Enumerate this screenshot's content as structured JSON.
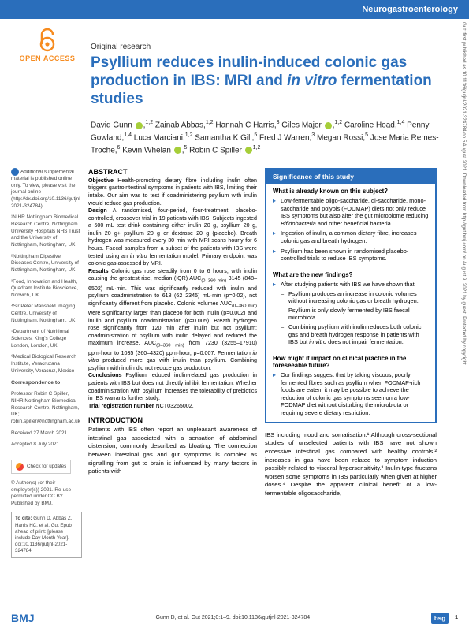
{
  "header": {
    "section": "Neurogastroenterology"
  },
  "open_access": {
    "label": "OPEN ACCESS"
  },
  "article": {
    "type": "Original research",
    "title_html": "Psyllium reduces inulin-induced colonic gas production in IBS: MRI and <em>in vitro</em> fermentation studies"
  },
  "authors_html": "David Gunn <span class='orcid'></span>,<sup>1,2</sup> Zainab Abbas,<sup>1,2</sup> Hannah C Harris,<sup>3</sup> Giles Major <span class='orcid'></span>,<sup>1,2</sup> Caroline Hoad,<sup>1,4</sup> Penny Gowland,<sup>1,4</sup> Luca Marciani,<sup>1,2</sup> Samantha K Gill,<sup>5</sup> Fred J Warren,<sup>3</sup> Megan Rossi,<sup>5</sup> Jose Maria Remes-Troche,<sup>6</sup> Kevin Whelan <span class='orcid'></span>,<sup>5</sup> Robin C Spiller <span class='orcid'></span><sup>1,2</sup>",
  "sidebar": {
    "supplemental": "Additional supplemental material is published online only. To view, please visit the journal online (http://dx.doi.org/10.1136/gutjnl-2021-324784).",
    "affiliations": [
      "¹NIHR Nottingham Biomedical Research Centre, Nottingham University Hospitals NHS Trust and the University of Nottingham, Nottingham, UK",
      "²Nottingham Digestive Diseases Centre, University of Nottingham, Nottingham, UK",
      "³Food, Innovation and Health, Quadram Institute Bioscience, Norwich, UK",
      "⁴Sir Peter Mansfield Imaging Centre, University of Nottingham, Nottingham, UK",
      "⁵Department of Nutritional Sciences, King's College London, London, UK",
      "⁶Medical Biological Research Institute, Veracruzana University, Veracruz, Mexico"
    ],
    "correspondence_heading": "Correspondence to",
    "correspondence": "Professor Robin C Spiller, NIHR Nottingham Biomedical Research Centre, Nottingham, UK; robin.spiller@nottingham.ac.uk",
    "received": "Received 27 March 2021",
    "accepted": "Accepted 8 July 2021",
    "check_updates": "Check for updates",
    "copyright": "© Author(s) (or their employer(s)) 2021. Re-use permitted under CC BY. Published by BMJ.",
    "cite_heading": "To cite:",
    "cite": "Gunn D, Abbas Z, Harris HC, et al. Gut Epub ahead of print: [please include Day Month Year]. doi:10.1136/gutjnl-2021-324784"
  },
  "abstract": {
    "heading": "ABSTRACT",
    "body_html": "<b>Objective</b> Health-promoting dietary fibre including inulin often triggers gastrointestinal symptoms in patients with IBS, limiting their intake. Our aim was to test if coadministering psyllium with inulin would reduce gas production.<br><b>Design</b> A randomised, four-period, four-treatment, placebo-controlled, crossover trial in 19 patients with IBS. Subjects ingested a 500 mL test drink containing either inulin 20 g, psyllium 20 g, inulin 20 g+ psyllium 20 g or dextrose 20 g (placebo). Breath hydrogen was measured every 30 min with MRI scans hourly for 6 hours. Faecal samples from a subset of the patients with IBS were tested using an <i>in vitro</i> fermentation model. Primary endpoint was colonic gas assessed by MRI.<br><b>Results</b> Colonic gas rose steadily from 0 to 6 hours, with inulin causing the greatest rise, median (IQR) AUC<sub>(0–360 min)</sub> 3145 (848–6502) mL·min. This was significantly reduced with inulin and psyllium coadministration to 618 (62–2345) mL·min (p=0.02), not significantly different from placebo. Colonic volumes AUC<sub>(0–360 min)</sub> were significantly larger than placebo for both inulin (p=0.002) and inulin and psyllium coadministration (p=0.005). Breath hydrogen rose significantly from 120 min after inulin but not psyllium; coadministration of psyllium with inulin delayed and reduced the maximum increase, AUC<sub>(0–360 min)</sub> from 7230 (3255–17910) ppm·hour to 1035 (360–4320) ppm·hour, p=0.007. Fermentation <i>in vitro</i> produced more gas with inulin than psyllium. Combining psyllium with inulin did not reduce gas production.<br><b>Conclusions</b> Psyllium reduced inulin-related gas production in patients with IBS but does not directly inhibit fermentation. Whether coadministration with psyllium increases the tolerability of prebiotics in IBS warrants further study.<br><b>Trial registration number</b> NCT03265002."
  },
  "intro": {
    "heading": "INTRODUCTION",
    "body": "Patients with IBS often report an unpleasant awareness of intestinal gas associated with a sensation of abdominal distension, commonly described as bloating. The connection between intestinal gas and gut symptoms is complex as signalling from gut to brain is influenced by many factors in patients with"
  },
  "significance": {
    "title": "Significance of this study",
    "q1": "What is already known on this subject?",
    "q1_items": [
      "Low-fermentable oligo-saccharide, di-saccharide, mono-saccharide and polyols (FODMAP) diets not only reduce IBS symptoms but also alter the gut microbiome reducing <i>Bifidobacteria</i> and other beneficial bacteria.",
      "Ingestion of inulin, a common dietary fibre, increases colonic gas and breath hydrogen.",
      "Psyllium has been shown in randomised placebo-controlled trials to reduce IBS symptoms."
    ],
    "q2": "What are the new findings?",
    "q2_intro": "After studying patients with IBS we have shown that",
    "q2_items": [
      "Psyllium produces an increase in colonic volumes without increasing colonic gas or breath hydrogen.",
      "Psyllium is only slowly fermented by IBS faecal microbiota.",
      "Combining psyllium with inulin reduces both colonic gas and breath hydrogen response in patients with IBS but <i>in vitro</i> does not impair fermentation."
    ],
    "q3": "How might it impact on clinical practice in the foreseeable future?",
    "q3_items": [
      "Our findings suggest that by taking viscous, poorly fermented fibres such as psyllium when FODMAP-rich foods are eaten, it may be possible to achieve the reduction of colonic gas symptoms seen on a low-FODMAP diet without disturbing the microbiota or requiring severe dietary restriction."
    ]
  },
  "right_body": "IBS including mood and somatisation.¹ Although cross-sectional studies of unselected patients with IBS have not shown excessive intestinal gas compared with healthy controls,² increases in gas have been related to symptom induction possibly related to visceral hypersensitivity.³ Inulin-type fructans worsen some symptoms in IBS particularly when given at higher doses.⁴ Despite the apparent clinical benefit of a low-fermentable oligosaccharide,",
  "footer": {
    "publisher": "BMJ",
    "citation": "Gunn D, et al. Gut 2021;0:1–9. doi:10.1136/gutjnl-2021-324784",
    "page": "1"
  },
  "vertical": "Gut: first published as 10.1136/gutjnl-2021-324784 on 5 August 2021. Downloaded from http://gut.bmj.com/ on August 9, 2021 by guest. Protected by copyright.",
  "colors": {
    "brand": "#2a6ebb",
    "oa_orange": "#f68b1f",
    "orcid_green": "#a6ce39"
  }
}
